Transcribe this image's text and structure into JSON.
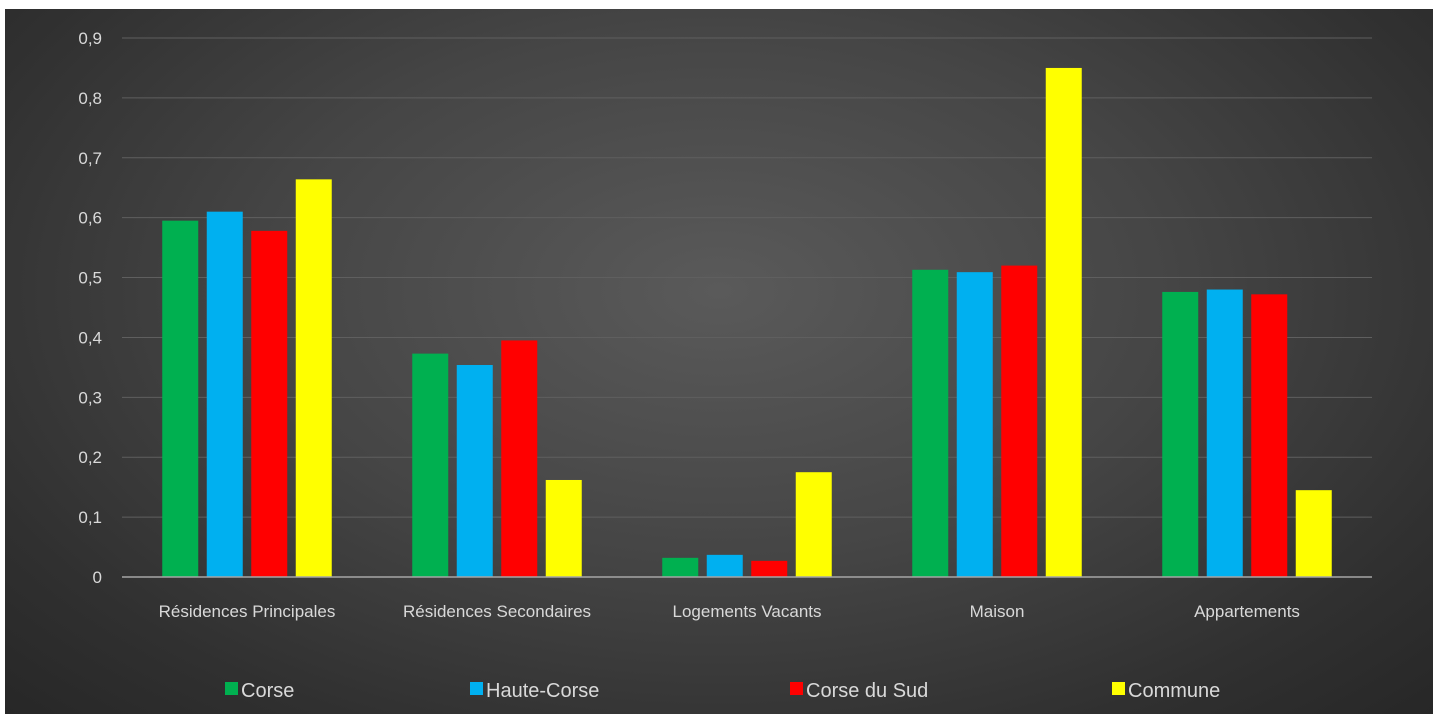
{
  "chart_data": {
    "type": "bar",
    "title": "",
    "xlabel": "",
    "ylabel": "",
    "ylim": [
      0,
      0.9
    ],
    "y_ticks": [
      "0",
      "0,1",
      "0,2",
      "0,3",
      "0,4",
      "0,5",
      "0,6",
      "0,7",
      "0,8",
      "0,9"
    ],
    "grid": true,
    "legend_position": "bottom",
    "categories": [
      "Résidences Principales",
      "Résidences Secondaires",
      "Logements Vacants",
      "Maison",
      "Appartements"
    ],
    "series": [
      {
        "name": "Corse",
        "color": "#00b050",
        "values": [
          0.595,
          0.373,
          0.032,
          0.513,
          0.476
        ]
      },
      {
        "name": "Haute-Corse",
        "color": "#00b0f0",
        "values": [
          0.61,
          0.354,
          0.037,
          0.509,
          0.48
        ]
      },
      {
        "name": "Corse du Sud",
        "color": "#ff0000",
        "values": [
          0.578,
          0.395,
          0.027,
          0.52,
          0.472
        ]
      },
      {
        "name": "Commune",
        "color": "#ffff00",
        "values": [
          0.664,
          0.162,
          0.175,
          0.85,
          0.145
        ]
      }
    ]
  }
}
